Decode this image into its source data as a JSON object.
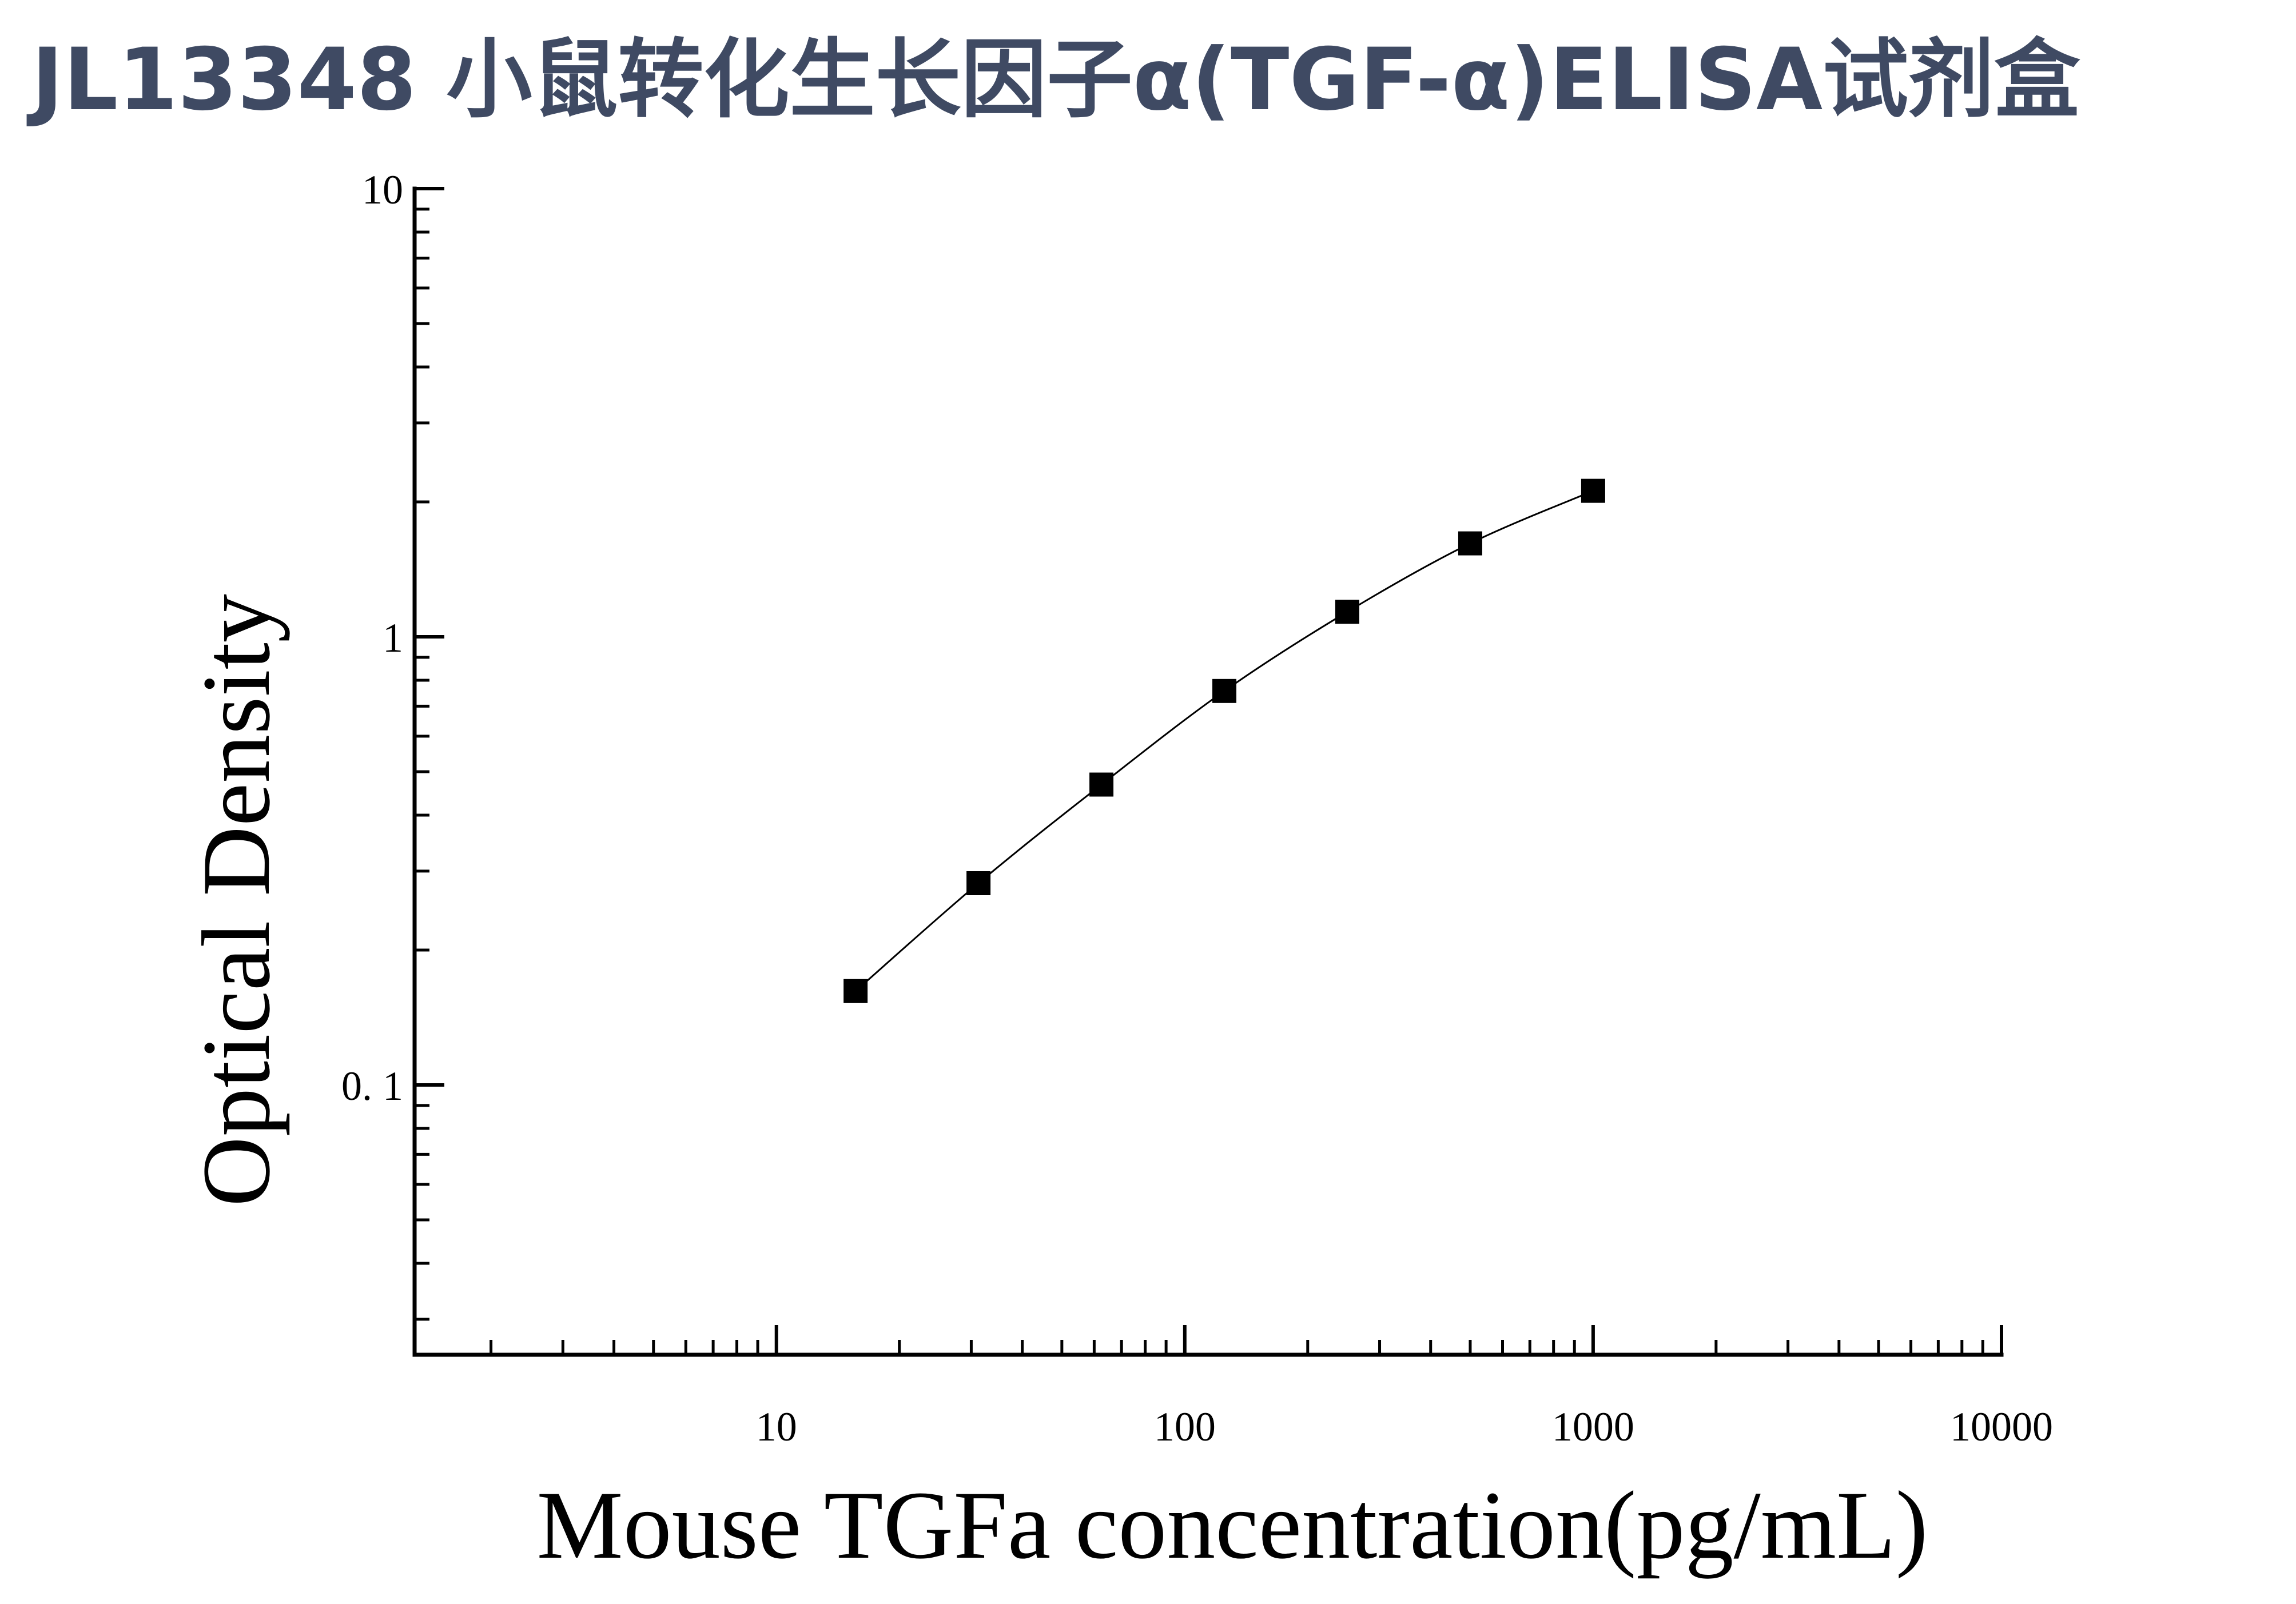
{
  "title": "JL13348 小鼠转化生长因子α(TGF-α)ELISA试剂盒",
  "title_color": "#3f4a63",
  "chart_data": {
    "type": "scatter",
    "x_scale": "log",
    "y_scale": "log",
    "xlabel": "Mouse TGFa concentration(pg/mL)",
    "ylabel": "Optical Density",
    "xlim": [
      1.3,
      10000
    ],
    "ylim": [
      0.025,
      10
    ],
    "x_ticks": [
      {
        "value": 10,
        "label": "10"
      },
      {
        "value": 100,
        "label": "100"
      },
      {
        "value": 1000,
        "label": "1000"
      },
      {
        "value": 10000,
        "label": "10000"
      }
    ],
    "y_ticks": [
      {
        "value": 0.1,
        "label": "0. 1"
      },
      {
        "value": 1,
        "label": "1"
      },
      {
        "value": 10,
        "label": "10"
      }
    ],
    "grid": false,
    "marker": "square",
    "curve": "fitted line through points",
    "series": [
      {
        "x": [
          15.625,
          31.25,
          62.5,
          125,
          250,
          500,
          1000
        ],
        "y": [
          0.162,
          0.282,
          0.468,
          0.757,
          1.137,
          1.616,
          2.117
        ]
      }
    ],
    "color": "#000000"
  }
}
